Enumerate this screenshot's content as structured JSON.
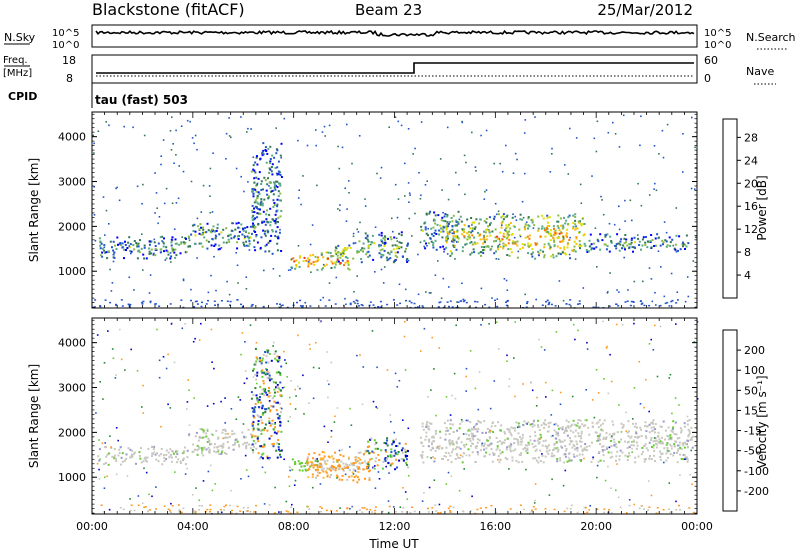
{
  "header": {
    "station": "Blackstone (fitACF)",
    "beam": "Beam 23",
    "date": "25/Mar/2012"
  },
  "strip": {
    "nsky_label": "N.Sky",
    "nsearch_label": "N.Search",
    "nsky_ticks": [
      "10^5",
      "10^0"
    ],
    "nsearch_ticks": [
      "10^5",
      "10^0"
    ],
    "freq_label_1": "Freq.",
    "freq_label_2": "[MHz]",
    "freq_ticks": [
      "18",
      "8"
    ],
    "nave_label": "Nave",
    "nave_ticks": [
      "60",
      "0"
    ],
    "cpid_label": "CPID",
    "cpid_value": "tau (fast) 503"
  },
  "chart_data": [
    {
      "type": "heatmap",
      "panel": "power",
      "ylabel": "Slant Range [km]",
      "ylim": [
        180,
        4550
      ],
      "yticks": [
        1000,
        2000,
        3000,
        4000
      ],
      "xlim_hours": [
        0,
        24
      ],
      "colorbar": {
        "label": "Power [dB]",
        "ticks": [
          "28",
          "24",
          "20",
          "16",
          "12",
          "8",
          "4"
        ],
        "colors": [
          "#0000ff",
          "#2255cc",
          "#337755",
          "#55aa88",
          "#88bb44",
          "#dddd00",
          "#ffbb00",
          "#ff7700",
          "#ff3300",
          "#ff0000"
        ]
      },
      "regions": [
        {
          "t0": 0.2,
          "t1": 3.8,
          "r0": 1300,
          "r1": 1800,
          "level": 0.3
        },
        {
          "t0": 3.8,
          "t1": 6.5,
          "r0": 1500,
          "r1": 2100,
          "level": 0.35
        },
        {
          "t0": 6.3,
          "t1": 7.5,
          "r0": 1400,
          "r1": 3900,
          "level": 0.25
        },
        {
          "t0": 7.8,
          "t1": 10.2,
          "r0": 1050,
          "r1": 1450,
          "level": 0.75
        },
        {
          "t0": 9.6,
          "t1": 10.8,
          "r0": 1200,
          "r1": 1700,
          "level": 0.5
        },
        {
          "t0": 10.8,
          "t1": 12.5,
          "r0": 1200,
          "r1": 1900,
          "level": 0.35
        },
        {
          "t0": 13.0,
          "t1": 14.5,
          "r0": 1500,
          "r1": 2400,
          "level": 0.35
        },
        {
          "t0": 14.0,
          "t1": 16.0,
          "r0": 1350,
          "r1": 2250,
          "level": 0.55
        },
        {
          "t0": 16.0,
          "t1": 19.5,
          "r0": 1300,
          "r1": 2300,
          "level": 0.65
        },
        {
          "t0": 19.5,
          "t1": 23.8,
          "r0": 1450,
          "r1": 1850,
          "level": 0.3
        }
      ]
    },
    {
      "type": "heatmap",
      "panel": "velocity",
      "ylabel": "Slant Range [km]",
      "ylim": [
        180,
        4550
      ],
      "yticks": [
        1000,
        2000,
        3000,
        4000
      ],
      "xlabel": "Time UT",
      "xticks": [
        "00:00",
        "04:00",
        "08:00",
        "12:00",
        "16:00",
        "20:00",
        "00:00"
      ],
      "xtick_hours": [
        0,
        4,
        8,
        12,
        16,
        20,
        24
      ],
      "colorbar": {
        "label": "Velocity [m s⁻¹]",
        "ticks": [
          "200",
          "100",
          "50",
          "15",
          "-15",
          "-50",
          "-100",
          "-200"
        ],
        "colors": [
          "#ff0000",
          "#ff4400",
          "#ff7700",
          "#ffaa22",
          "#cccccc",
          "#cccccc",
          "#66cc33",
          "#228833",
          "#2255cc",
          "#0000cc"
        ]
      },
      "regions": [
        {
          "t0": 0.2,
          "t1": 3.8,
          "r0": 1300,
          "r1": 1700,
          "kind": "grey"
        },
        {
          "t0": 3.8,
          "t1": 6.5,
          "r0": 1500,
          "r1": 2100,
          "kind": "grey"
        },
        {
          "t0": 6.3,
          "t1": 7.5,
          "r0": 1400,
          "r1": 3900,
          "kind": "mixed"
        },
        {
          "t0": 7.8,
          "t1": 9.0,
          "r0": 1150,
          "r1": 1450,
          "kind": "green"
        },
        {
          "t0": 9.0,
          "t1": 10.8,
          "r0": 1150,
          "r1": 1450,
          "kind": "grey"
        },
        {
          "t0": 8.5,
          "t1": 11.0,
          "r0": 900,
          "r1": 1600,
          "kind": "orange"
        },
        {
          "t0": 10.8,
          "t1": 12.5,
          "r0": 1200,
          "r1": 1900,
          "kind": "mixed"
        },
        {
          "t0": 13.0,
          "t1": 23.8,
          "r0": 1350,
          "r1": 2300,
          "kind": "grey"
        }
      ]
    }
  ]
}
